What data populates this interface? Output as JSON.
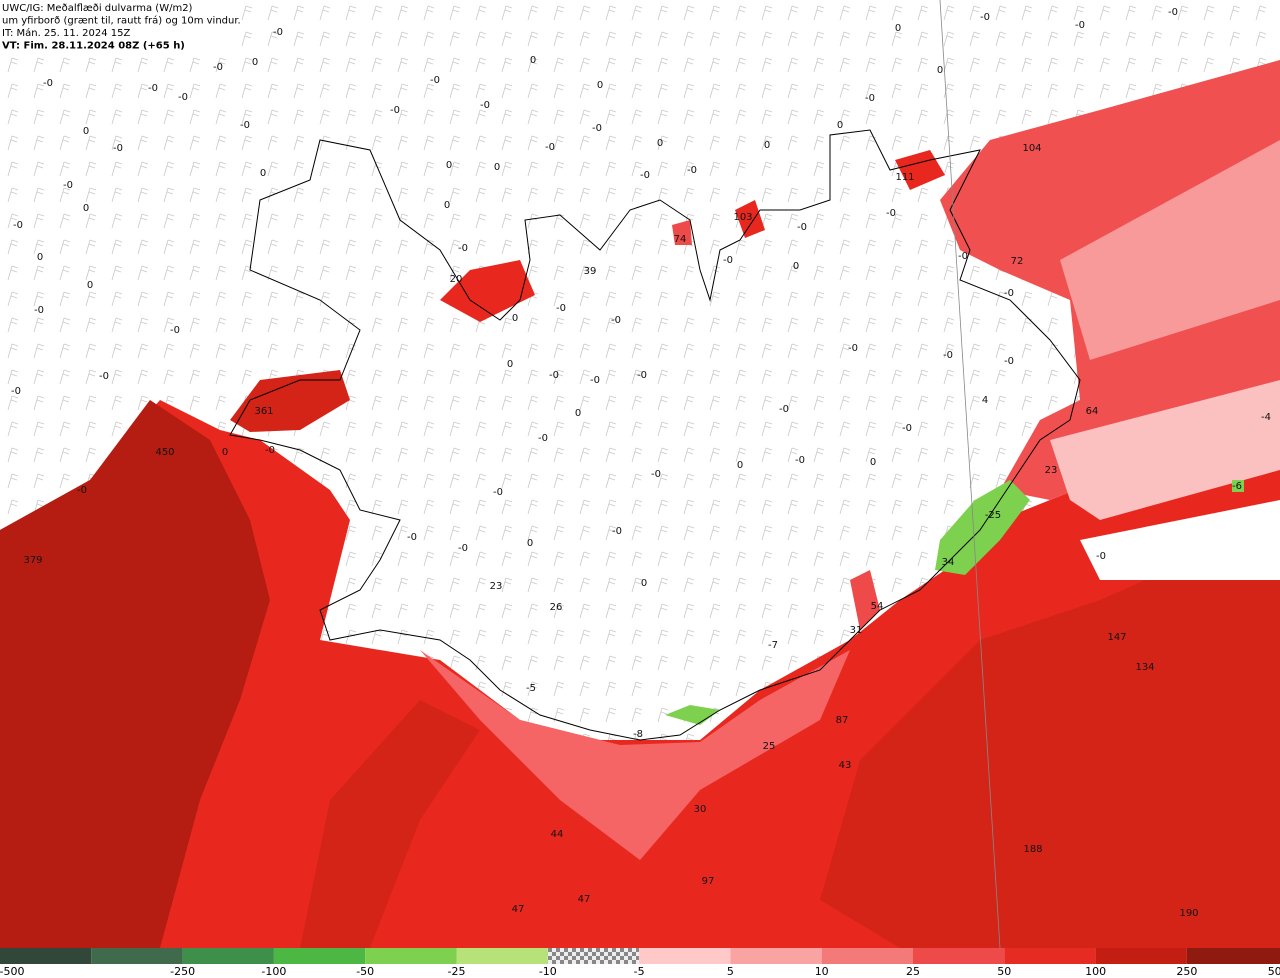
{
  "header": {
    "lines": [
      "UWC/IG: Meðalflæði dulvarma (W/m2)",
      "um yfirborð (grænt til, rautt frá) og 10m vindur.",
      "IT: Mán. 25. 11. 2024 15Z",
      "VT: Fim. 28.11.2024 08Z (+65 h)"
    ]
  },
  "colorbar": {
    "labels": [
      "-500",
      "-250",
      "-100",
      "-50",
      "-25",
      "-10",
      "-5",
      "5",
      "10",
      "25",
      "50",
      "100",
      "250",
      "500"
    ],
    "colors": [
      "#31473a",
      "#3f6b4c",
      "#3d8f4a",
      "#4cb843",
      "#7dd14e",
      "#b7e27a",
      "checker",
      "#ffc9c9",
      "#f9a3a3",
      "#f47a7a",
      "#ee4a4a",
      "#e52b22",
      "#c41e12",
      "#8e1a10"
    ]
  },
  "map_labels": [
    "-0",
    "0",
    "-0",
    "-0",
    "-0",
    "-0",
    "-0",
    "0",
    "-0",
    "-0",
    "0",
    "0",
    "-0",
    "-0",
    "-0",
    "-0",
    "0",
    "0",
    "0",
    "-0",
    "0",
    "-0",
    "0",
    "0",
    "-0",
    "-0",
    "0",
    "0",
    "-0",
    "0",
    "-0",
    "-0",
    "-0",
    "0",
    "104",
    "111",
    "103",
    "74",
    "39",
    "20",
    "72",
    "361",
    "450",
    "379",
    "64",
    "23",
    "-6",
    "-25",
    "34",
    "54",
    "31",
    "-7",
    "23",
    "26",
    "-5",
    "-8",
    "87",
    "25",
    "43",
    "30",
    "44",
    "97",
    "47",
    "47",
    "147",
    "134",
    "188",
    "190",
    "-0",
    "-4",
    "4",
    "0",
    "-0",
    "-0",
    "-0",
    "-0",
    "0",
    "-0",
    "0",
    "-0",
    "-0",
    "0",
    "-0",
    "-0",
    "0",
    "-0",
    "-0",
    "-0",
    "0",
    "0",
    "-0",
    "-0",
    "-0",
    "-0",
    "-0",
    "0",
    "0",
    "0",
    "-0",
    "-0",
    "-0",
    "-0",
    "-0",
    "0",
    "-0",
    "-0",
    "-0",
    "-0",
    "-0",
    "-0",
    "-0"
  ]
}
